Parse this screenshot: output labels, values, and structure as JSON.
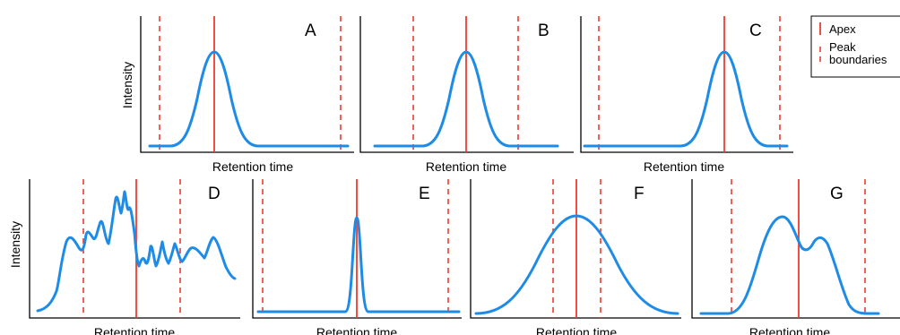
{
  "colors": {
    "curve": "#1e8ce6",
    "apex": "#ee3b2e",
    "boundary": "#ee3b2e",
    "axis": "#000000"
  },
  "axis_labels": {
    "x": "Retention time",
    "y": "Intensity"
  },
  "legend": {
    "apex": "Apex",
    "boundaries": "Peak boundaries",
    "boundaries_line1": "Peak",
    "boundaries_line2": "boundaries"
  },
  "panels": [
    {
      "id": "A",
      "label": "A",
      "y_label": "Intensity",
      "x_label": "Retention time"
    },
    {
      "id": "B",
      "label": "B",
      "x_label": "Retention time"
    },
    {
      "id": "C",
      "label": "C",
      "x_label": "Retention time"
    },
    {
      "id": "D",
      "label": "D",
      "y_label": "Intensity",
      "x_label": "Retention time"
    },
    {
      "id": "E",
      "label": "E",
      "x_label": "Retention time"
    },
    {
      "id": "F",
      "label": "F",
      "x_label": "Retention time"
    },
    {
      "id": "G",
      "label": "G",
      "x_label": "Retention time"
    }
  ]
}
